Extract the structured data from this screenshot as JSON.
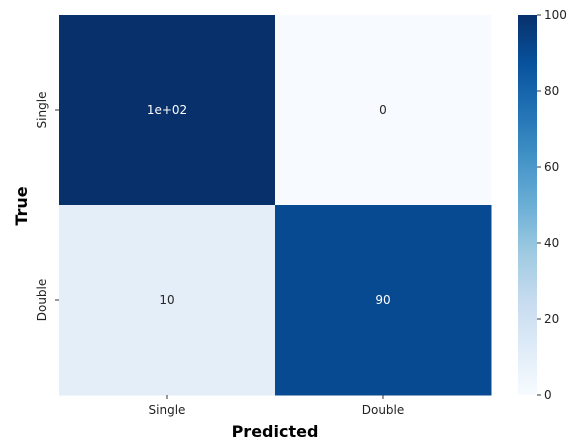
{
  "chart_data": {
    "type": "heatmap",
    "title": "",
    "xlabel": "Predicted",
    "ylabel": "True",
    "x_categories": [
      "Single",
      "Double"
    ],
    "y_categories": [
      "Single",
      "Double"
    ],
    "values": [
      [
        100,
        0
      ],
      [
        10,
        90
      ]
    ],
    "annotations": [
      [
        "1e+02",
        "0"
      ],
      [
        "10",
        "90"
      ]
    ],
    "colormap": "Blues",
    "color_range": [
      0,
      100
    ],
    "colorbar": {
      "ticks": [
        0,
        20,
        40,
        60,
        80,
        100
      ],
      "tick_labels": [
        "0",
        "20",
        "40",
        "60",
        "80",
        "100"
      ]
    },
    "grid": false,
    "legend": "colorbar-right"
  }
}
